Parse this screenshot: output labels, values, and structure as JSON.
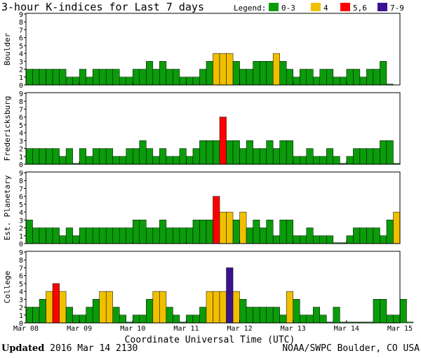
{
  "header": {
    "title": "3-hour K-indices for Last 7 days",
    "legend_title": "Legend:",
    "legend": [
      {
        "label": "0-3",
        "color": "#0a9c0a"
      },
      {
        "label": "4",
        "color": "#f0c000"
      },
      {
        "label": "5,6",
        "color": "#ff0000"
      },
      {
        "label": "7-9",
        "color": "#3b1390"
      }
    ]
  },
  "chart_data": {
    "type": "bar",
    "title": "3-hour K-indices for Last 7 days",
    "xlabel": "Coordinate Universal Time (UTC)",
    "ylim": [
      0,
      9
    ],
    "yticks": [
      0,
      1,
      2,
      3,
      4,
      5,
      6,
      7,
      8,
      9
    ],
    "xticks": [
      "Mar 08",
      "Mar 09",
      "Mar 10",
      "Mar 11",
      "Mar 12",
      "Mar 13",
      "Mar 14",
      "Mar 15"
    ],
    "bars_per_day": 8,
    "color_rules": [
      {
        "range": "0-3",
        "color": "#0a9c0a"
      },
      {
        "range": "4",
        "color": "#f0c000"
      },
      {
        "range": "5-6",
        "color": "#ff0000"
      },
      {
        "range": "7-9",
        "color": "#3b1390"
      }
    ],
    "series": [
      {
        "name": "Boulder",
        "values": [
          2,
          2,
          2,
          2,
          2,
          2,
          1,
          1,
          2,
          1,
          2,
          2,
          2,
          2,
          1,
          1,
          2,
          2,
          3,
          2,
          3,
          2,
          2,
          1,
          1,
          1,
          2,
          3,
          4,
          4,
          4,
          3,
          2,
          2,
          3,
          3,
          3,
          4,
          3,
          2,
          1,
          2,
          2,
          1,
          2,
          2,
          1,
          1,
          2,
          2,
          1,
          2,
          2,
          3,
          0
        ]
      },
      {
        "name": "Fredericksburg",
        "values": [
          2,
          2,
          2,
          2,
          2,
          1,
          2,
          0,
          2,
          1,
          2,
          2,
          2,
          1,
          1,
          2,
          2,
          3,
          2,
          1,
          2,
          1,
          1,
          2,
          1,
          2,
          3,
          3,
          3,
          6,
          3,
          3,
          2,
          3,
          2,
          2,
          3,
          2,
          3,
          3,
          1,
          1,
          2,
          1,
          1,
          2,
          1,
          0,
          1,
          2,
          2,
          2,
          2,
          3,
          3,
          0
        ]
      },
      {
        "name": "Est. Planetary",
        "values": [
          3,
          2,
          2,
          2,
          2,
          1,
          2,
          1,
          2,
          2,
          2,
          2,
          2,
          2,
          2,
          2,
          3,
          3,
          2,
          2,
          3,
          2,
          2,
          2,
          2,
          3,
          3,
          3,
          6,
          4,
          4,
          3,
          4,
          2,
          3,
          2,
          3,
          1,
          3,
          3,
          1,
          1,
          2,
          1,
          1,
          1,
          0,
          0,
          1,
          2,
          2,
          2,
          2,
          1,
          3,
          4
        ]
      },
      {
        "name": "College",
        "values": [
          2,
          2,
          3,
          4,
          5,
          4,
          2,
          1,
          1,
          2,
          3,
          4,
          4,
          2,
          1,
          0,
          1,
          1,
          3,
          4,
          4,
          2,
          1,
          0,
          1,
          1,
          2,
          4,
          4,
          4,
          7,
          4,
          3,
          2,
          2,
          2,
          2,
          2,
          1,
          4,
          3,
          1,
          1,
          2,
          1,
          0,
          2,
          0,
          0,
          0,
          0,
          0,
          3,
          3,
          1,
          1,
          3,
          0
        ]
      }
    ]
  },
  "footer": {
    "updated_label": "Updated",
    "updated_value": "2016 Mar 14 2130",
    "source": "NOAA/SWPC Boulder, CO USA"
  }
}
